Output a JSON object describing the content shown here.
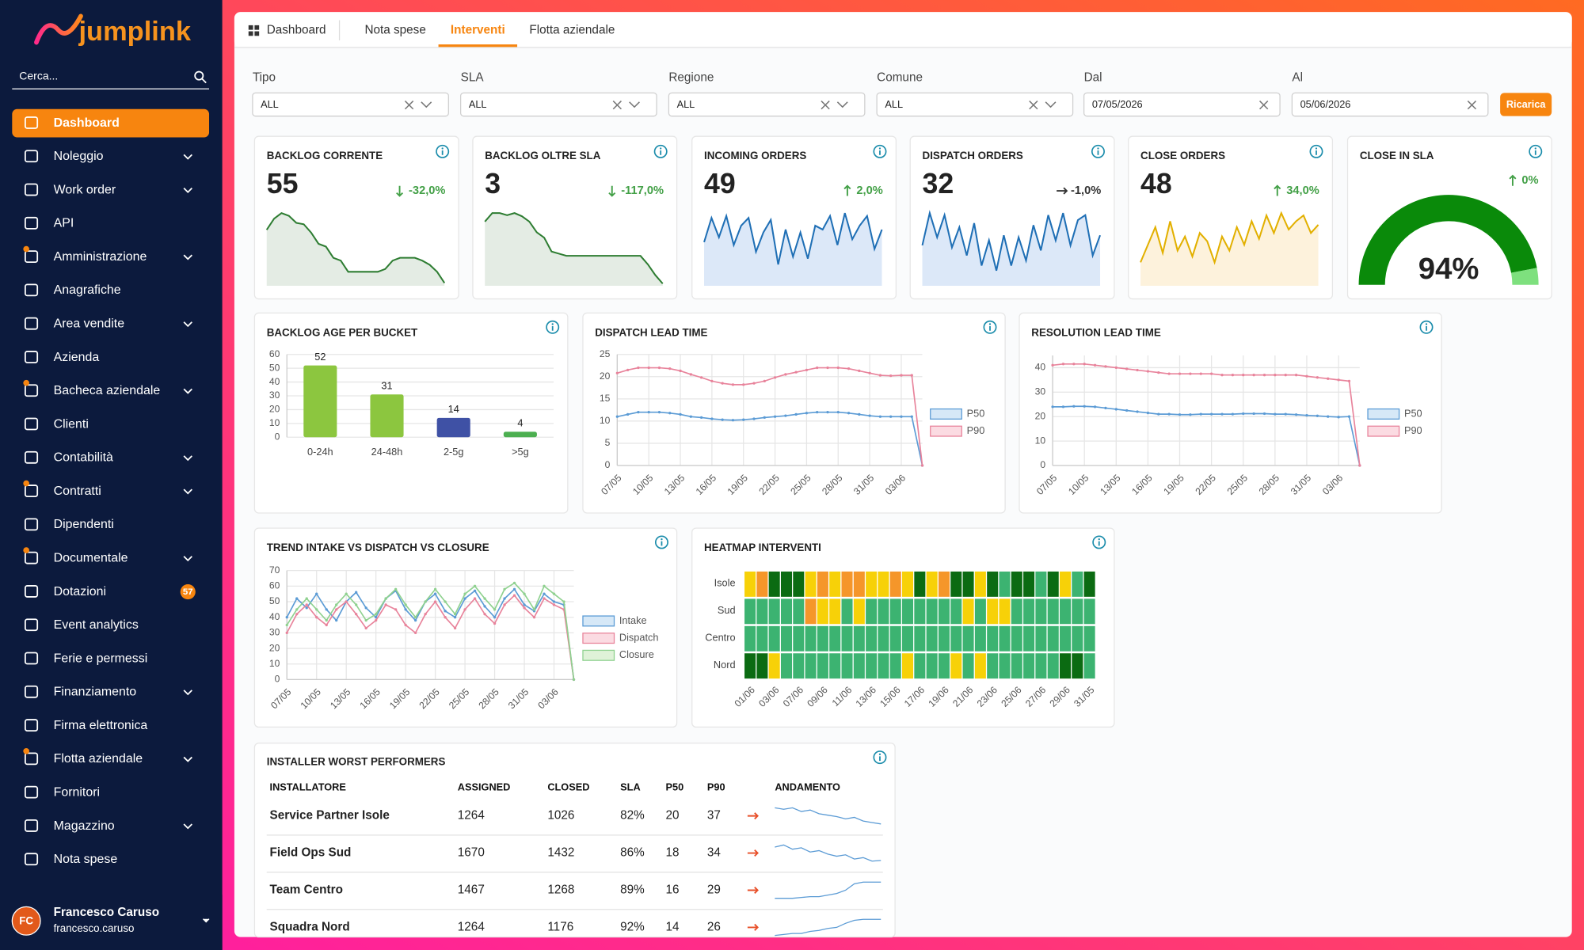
{
  "sidebar": {
    "logo": "jumplink",
    "search": "Cerca...",
    "menu": [
      "Dashboard",
      "Noleggio",
      "Work order",
      "API",
      "Amministrazione",
      "Anagrafiche",
      "Area vendite",
      "Azienda",
      "Bacheca aziendale",
      "Clienti",
      "Contabilità",
      "Contratti",
      "Dipendenti",
      "Documentale",
      "Dotazioni",
      "Event analytics",
      "Ferie e permessi",
      "Finanziamento",
      "Firma elettronica",
      "Flotta aziendale",
      "Fornitori",
      "Magazzino",
      "Nota spese"
    ],
    "badge": "57",
    "user": {
      "initials": "FC",
      "name": "Francesco Caruso",
      "username": "francesco.caruso"
    }
  },
  "tabs": [
    "Dashboard",
    "Nota spese",
    "Interventi",
    "Flotta aziendale"
  ],
  "filters": [
    {
      "label": "Tipo",
      "value": "ALL"
    },
    {
      "label": "SLA",
      "value": "ALL"
    },
    {
      "label": "Regione",
      "value": "ALL"
    },
    {
      "label": "Comune",
      "value": "ALL"
    },
    {
      "label": "Dal",
      "value": "07/05/2026"
    },
    {
      "label": "Al",
      "value": "05/06/2026"
    }
  ],
  "reload_button": "Ricarica",
  "kpis": [
    {
      "title": "BACKLOG CORRENTE",
      "value": 55,
      "change": "-32,0%",
      "trend": [
        40,
        48,
        52,
        50,
        45,
        44,
        38,
        30,
        28,
        20,
        18,
        10,
        10,
        10,
        10,
        10,
        12,
        18,
        20,
        20,
        20,
        18,
        15,
        10,
        2
      ]
    },
    {
      "title": "BACKLOG OLTRE SLA",
      "value": 3,
      "change": "-117,0%",
      "trend": [
        60,
        68,
        68,
        66,
        68,
        65,
        60,
        50,
        45,
        32,
        30,
        28,
        28,
        28,
        28,
        28,
        28,
        28,
        28,
        28,
        28,
        28,
        20,
        10,
        2
      ]
    },
    {
      "title": "INCOMING ORDERS",
      "value": 49,
      "change": "2,0%",
      "trend": [
        45,
        70,
        50,
        72,
        42,
        62,
        70,
        35,
        55,
        68,
        22,
        58,
        30,
        55,
        28,
        62,
        58,
        72,
        42,
        75,
        48,
        62,
        72,
        38,
        58
      ]
    },
    {
      "title": "DISPATCH ORDERS",
      "value": 32,
      "change": "-1,0%",
      "trend": [
        40,
        72,
        48,
        70,
        38,
        58,
        30,
        62,
        20,
        45,
        15,
        50,
        20,
        48,
        25,
        60,
        35,
        70,
        45,
        72,
        40,
        65,
        70,
        30,
        50
      ]
    },
    {
      "title": "CLOSE ORDERS",
      "value": 48,
      "change": "34,0%",
      "trend": [
        20,
        35,
        50,
        28,
        55,
        30,
        42,
        25,
        45,
        38,
        20,
        42,
        30,
        50,
        35,
        55,
        40,
        60,
        45,
        62,
        48,
        55,
        60,
        45,
        52
      ]
    }
  ],
  "gauge": {
    "title": "CLOSE IN SLA",
    "value": 94,
    "value_label": "94%",
    "change": "0%"
  },
  "charts": {
    "backlog_age": {
      "type": "bar",
      "title": "BACKLOG AGE PER BUCKET",
      "categories": [
        "0-24h",
        "24-48h",
        "2-5g",
        ">5g"
      ],
      "values": [
        52,
        31,
        14,
        4
      ],
      "colors": [
        "#8cc63f",
        "#8cc63f",
        "#3f51a5",
        "#4caf50"
      ],
      "ylim": [
        0,
        60
      ],
      "yticks": [
        0,
        10,
        20,
        30,
        40,
        50,
        60
      ]
    },
    "dispatch_lead_time": {
      "type": "line",
      "title": "DISPATCH LEAD TIME",
      "categories": [
        "07/05",
        null,
        null,
        "10/05",
        null,
        null,
        "13/05",
        null,
        null,
        "16/05",
        null,
        null,
        "19/05",
        null,
        null,
        "22/05",
        null,
        null,
        "25/05",
        null,
        null,
        "28/05",
        null,
        null,
        "31/05",
        null,
        null,
        "03/06",
        null,
        null
      ],
      "series": [
        {
          "name": "P50",
          "color": "#5b9bd5",
          "fill": "#d6e8f7",
          "values": [
            11,
            11.5,
            12,
            12,
            12,
            11.8,
            11.5,
            11,
            10.8,
            10.5,
            10.3,
            10.2,
            10.3,
            10.5,
            10.8,
            11,
            11.2,
            11.5,
            11.8,
            12,
            12,
            12,
            11.8,
            11.5,
            11.2,
            11,
            11,
            11,
            11,
            0
          ]
        },
        {
          "name": "P90",
          "color": "#e8839b",
          "fill": "#fbdbe2",
          "values": [
            20.8,
            21.5,
            22,
            22,
            22,
            21.8,
            21.3,
            20.5,
            19.8,
            19,
            18.5,
            18.2,
            18.2,
            18.5,
            19,
            19.8,
            20.5,
            21,
            21.5,
            22,
            22,
            22,
            21.8,
            21.3,
            20.8,
            20.3,
            20.2,
            20.3,
            20.3,
            0
          ]
        }
      ],
      "ylim": [
        0,
        25
      ],
      "yticks": [
        0,
        5,
        10,
        15,
        20,
        25
      ]
    },
    "resolution_lead_time": {
      "type": "line",
      "title": "RESOLUTION LEAD TIME",
      "categories": [
        "07/05",
        null,
        null,
        "10/05",
        null,
        null,
        "13/05",
        null,
        null,
        "16/05",
        null,
        null,
        "19/05",
        null,
        null,
        "22/05",
        null,
        null,
        "25/05",
        null,
        null,
        "28/05",
        null,
        null,
        "31/05",
        null,
        null,
        "03/06",
        null,
        null
      ],
      "series": [
        {
          "name": "P50",
          "color": "#5b9bd5",
          "fill": "#d6e8f7",
          "values": [
            24,
            24,
            24.2,
            24.2,
            24,
            23.5,
            23,
            22.5,
            22,
            21.5,
            21,
            21,
            20.8,
            20.8,
            21,
            21,
            21,
            21,
            21.2,
            21.2,
            21.2,
            21,
            21,
            20.8,
            20.5,
            20.3,
            20,
            19.8,
            20,
            0
          ]
        },
        {
          "name": "P90",
          "color": "#e8839b",
          "fill": "#fbdbe2",
          "values": [
            41,
            41.5,
            41.5,
            41.5,
            41,
            40.5,
            40,
            39.5,
            39,
            38.5,
            38,
            37.5,
            37.5,
            37.5,
            37.5,
            37.5,
            37,
            37,
            37,
            37,
            37,
            37,
            37,
            37,
            36.5,
            36,
            35.5,
            35,
            34.5,
            0
          ]
        }
      ],
      "ylim": [
        0,
        45
      ],
      "yticks": [
        0,
        10,
        20,
        30,
        40
      ]
    },
    "trend": {
      "type": "line",
      "title": "TREND INTAKE VS DISPATCH VS CLOSURE",
      "categories": [
        "07/05",
        null,
        null,
        "10/05",
        null,
        null,
        "13/05",
        null,
        null,
        "16/05",
        null,
        null,
        "19/05",
        null,
        null,
        "22/05",
        null,
        null,
        "25/05",
        null,
        null,
        "28/05",
        null,
        null,
        "31/05",
        null,
        null,
        "03/06",
        null,
        null
      ],
      "series": [
        {
          "name": "Intake",
          "color": "#5b9bd5",
          "fill": "#d6e8f7",
          "values": [
            40,
            52,
            46,
            55,
            45,
            38,
            50,
            56,
            46,
            40,
            52,
            57,
            45,
            38,
            50,
            55,
            44,
            40,
            52,
            57,
            47,
            40,
            52,
            58,
            48,
            44,
            55,
            50,
            48,
            0
          ]
        },
        {
          "name": "Dispatch",
          "color": "#e8839b",
          "fill": "#fbdbe2",
          "values": [
            30,
            42,
            48,
            40,
            35,
            45,
            50,
            42,
            33,
            38,
            48,
            45,
            35,
            30,
            42,
            50,
            40,
            33,
            45,
            52,
            42,
            36,
            48,
            54,
            46,
            40,
            52,
            48,
            45,
            0
          ]
        },
        {
          "name": "Closure",
          "color": "#8fd18f",
          "fill": "#dff2d8",
          "values": [
            35,
            45,
            52,
            45,
            38,
            48,
            55,
            48,
            38,
            42,
            52,
            58,
            48,
            40,
            50,
            58,
            50,
            42,
            55,
            60,
            52,
            45,
            58,
            62,
            55,
            45,
            60,
            55,
            50,
            0
          ]
        }
      ],
      "ylim": [
        0,
        70
      ],
      "yticks": [
        0,
        10,
        20,
        30,
        40,
        50,
        60,
        70
      ]
    },
    "heatmap": {
      "type": "heatmap",
      "title": "HEATMAP INTERVENTI",
      "rows": [
        "Isole",
        "Sud",
        "Centro",
        "Nord"
      ],
      "columns": [
        "01/06",
        null,
        "03/06",
        null,
        "07/06",
        null,
        "09/06",
        null,
        "11/06",
        null,
        "13/06",
        null,
        "15/06",
        null,
        "17/06",
        null,
        "19/06",
        null,
        "21/06",
        null,
        "23/06",
        null,
        "25/06",
        null,
        "27/06",
        null,
        "29/06",
        null,
        "31/05"
      ],
      "colors": [
        "#0b6b12",
        "#3cb371",
        "#f7d108",
        "#f5962a"
      ],
      "values": [
        [
          3,
          4,
          1,
          1,
          1,
          3,
          4,
          3,
          4,
          4,
          3,
          3,
          4,
          3,
          1,
          3,
          4,
          1,
          1,
          3,
          1,
          2,
          1,
          1,
          2,
          1,
          3,
          2,
          1
        ],
        [
          2,
          2,
          2,
          2,
          2,
          4,
          3,
          3,
          2,
          3,
          2,
          2,
          2,
          2,
          2,
          2,
          2,
          2,
          3,
          2,
          3,
          3,
          2,
          2,
          2,
          2,
          2,
          2,
          2
        ],
        [
          2,
          2,
          2,
          2,
          2,
          2,
          2,
          2,
          2,
          2,
          2,
          2,
          2,
          2,
          2,
          2,
          2,
          2,
          2,
          2,
          2,
          2,
          2,
          2,
          2,
          2,
          2,
          2,
          2
        ],
        [
          1,
          1,
          3,
          2,
          2,
          2,
          2,
          2,
          2,
          2,
          2,
          2,
          2,
          3,
          2,
          2,
          2,
          3,
          2,
          3,
          2,
          2,
          2,
          2,
          2,
          2,
          1,
          1,
          2
        ]
      ]
    }
  },
  "table": {
    "title": "INSTALLER WORST PERFORMERS",
    "columns": [
      "INSTALLATORE",
      "ASSIGNED",
      "CLOSED",
      "SLA",
      "P50",
      "P90",
      "ANDAMENTO"
    ],
    "rows": [
      {
        "cells": [
          "Service Partner Isole",
          1264,
          1026,
          "82%",
          20,
          37
        ],
        "trend": [
          60,
          58,
          60,
          55,
          57,
          52,
          50,
          48,
          45,
          47,
          42,
          40,
          38
        ]
      },
      {
        "cells": [
          "Field Ops Sud",
          1670,
          1432,
          "86%",
          18,
          34
        ],
        "trend": [
          55,
          58,
          52,
          54,
          48,
          50,
          45,
          42,
          44,
          38,
          40,
          35,
          36
        ]
      },
      {
        "cells": [
          "Team Centro",
          1467,
          1268,
          "89%",
          16,
          29
        ],
        "trend": [
          20,
          20,
          20,
          21,
          22,
          22,
          24,
          26,
          30,
          38,
          40,
          40,
          40
        ]
      },
      {
        "cells": [
          "Squadra Nord",
          1264,
          1176,
          "92%",
          14,
          26
        ],
        "trend": [
          20,
          21,
          22,
          22,
          24,
          25,
          27,
          28,
          32,
          35,
          36,
          36,
          36
        ]
      }
    ]
  }
}
